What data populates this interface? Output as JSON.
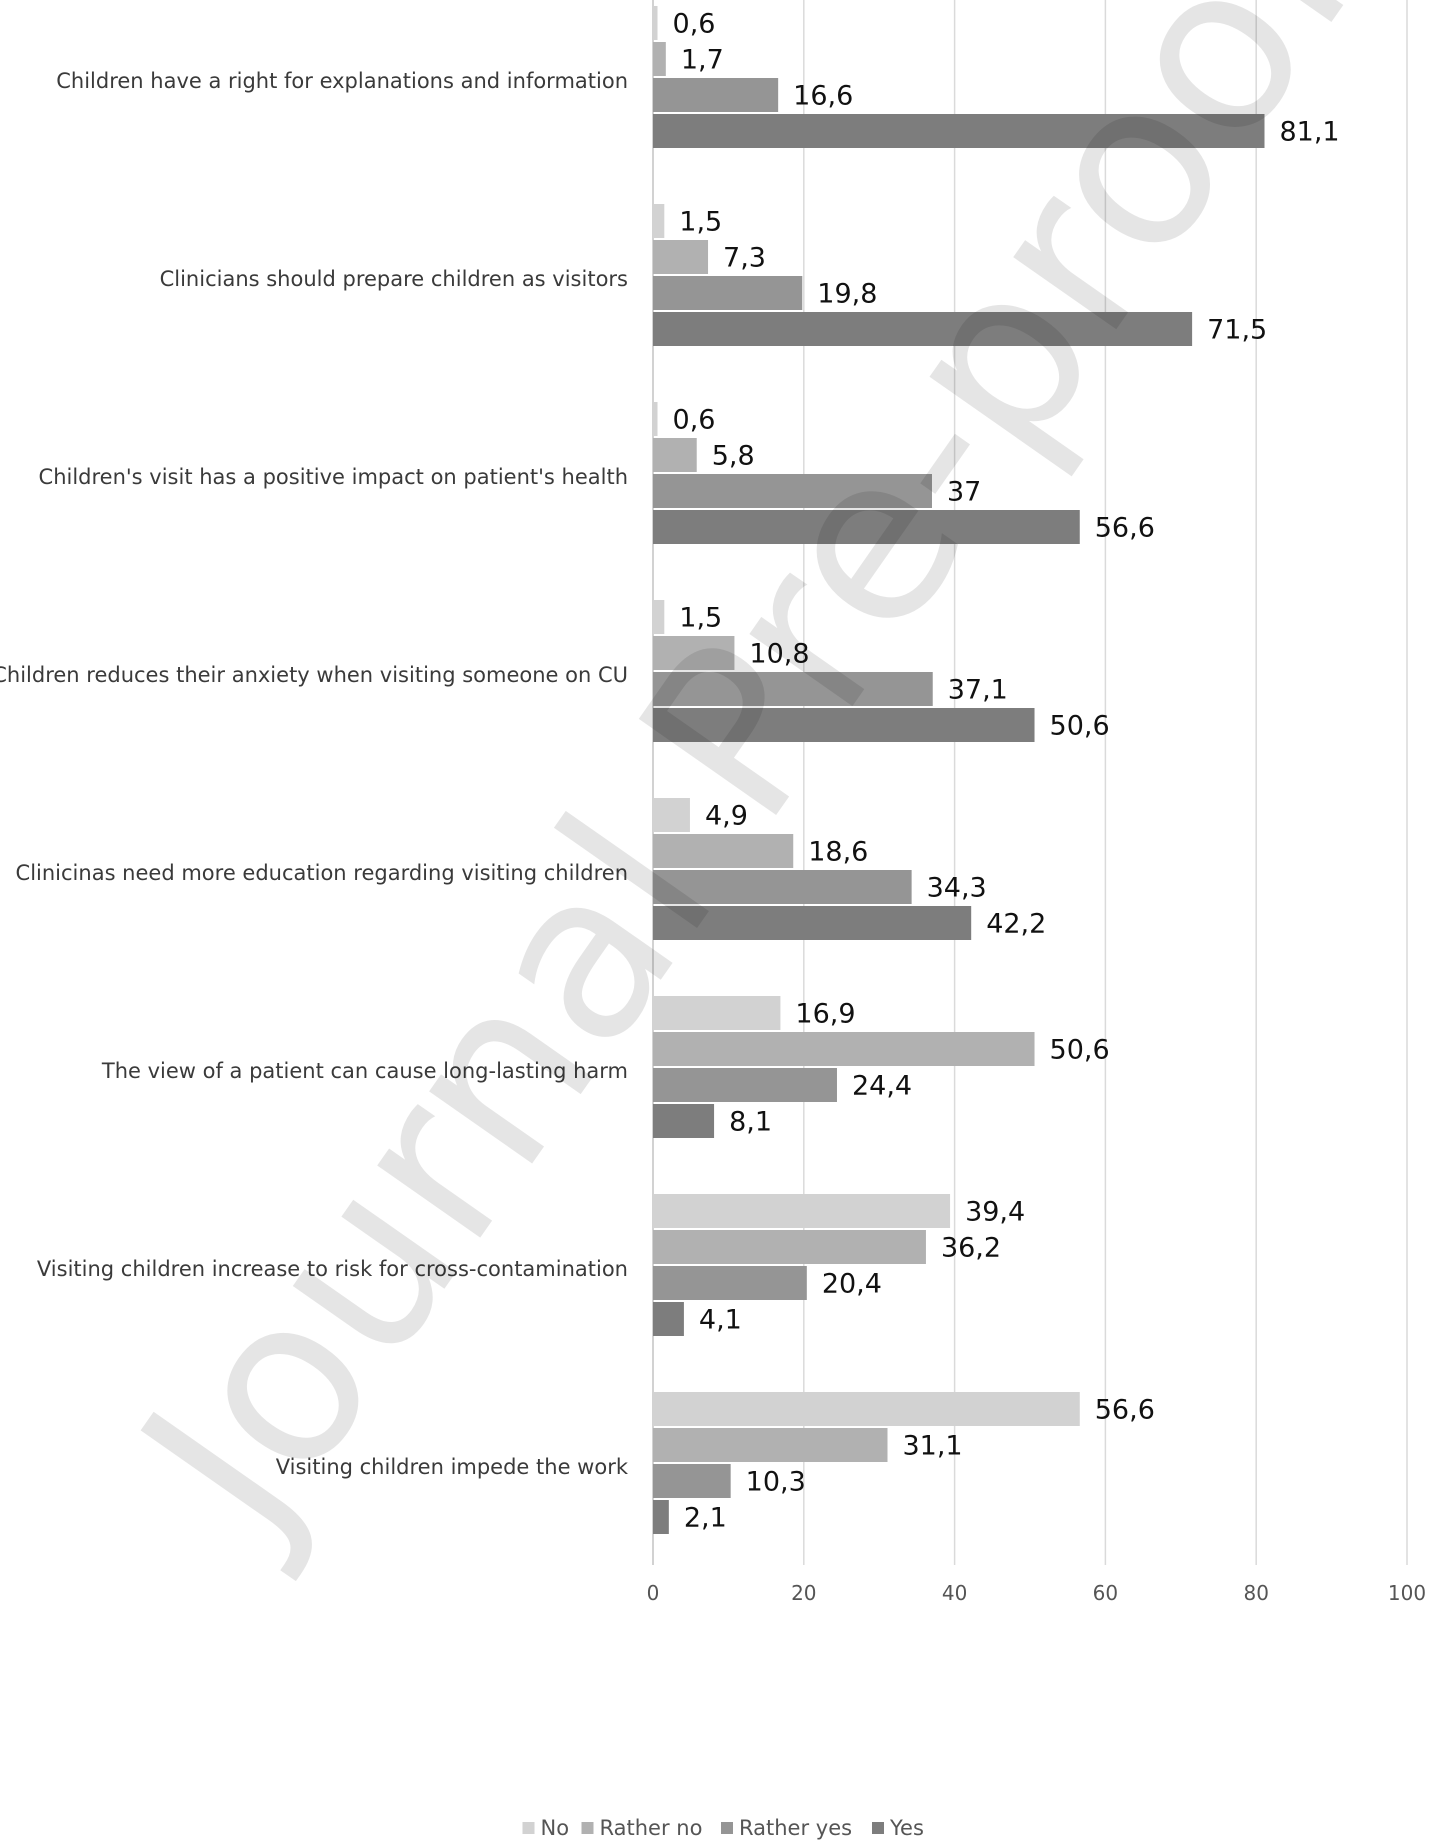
{
  "chart_data": {
    "type": "bar",
    "orientation": "horizontal",
    "categories": [
      "Children have a right for explanations and information",
      "Clinicians should prepare children as visitors",
      "Children's visit has a positive impact on patient's health",
      "Children reduces their anxiety when visiting someone on CU",
      "Clinicinas need more education regarding visiting children",
      "The view of a patient can cause long-lasting harm",
      "Visiting children increase to risk for cross-contamination",
      "Visiting children impede the work"
    ],
    "series": [
      {
        "name": "No",
        "color": "#d2d2d2",
        "values": [
          0.6,
          1.5,
          0.6,
          1.5,
          4.9,
          16.9,
          39.4,
          56.6
        ],
        "labels": [
          "0,6",
          "1,5",
          "0,6",
          "1,5",
          "4,9",
          "16,9",
          "39,4",
          "56,6"
        ]
      },
      {
        "name": "Rather no",
        "color": "#b1b1b1",
        "values": [
          1.7,
          7.3,
          5.8,
          10.8,
          18.6,
          50.6,
          36.2,
          31.1
        ],
        "labels": [
          "1,7",
          "7,3",
          "5,8",
          "10,8",
          "18,6",
          "50,6",
          "36,2",
          "31,1"
        ]
      },
      {
        "name": "Rather yes",
        "color": "#959595",
        "values": [
          16.6,
          19.8,
          37,
          37.1,
          34.3,
          24.4,
          20.4,
          10.3
        ],
        "labels": [
          "16,6",
          "19,8",
          "37",
          "37,1",
          "34,3",
          "24,4",
          "20,4",
          "10,3"
        ]
      },
      {
        "name": "Yes",
        "color": "#7d7d7d",
        "values": [
          81.1,
          71.5,
          56.6,
          50.6,
          42.2,
          8.1,
          4.1,
          2.1
        ],
        "labels": [
          "81,1",
          "71,5",
          "56,6",
          "50,6",
          "42,2",
          "8,1",
          "4,1",
          "2,1"
        ]
      }
    ],
    "xlim": [
      0,
      100
    ],
    "xticks": [
      0,
      20,
      40,
      60,
      80,
      100
    ],
    "xtick_labels": [
      "0",
      "20",
      "40",
      "60",
      "80",
      "100"
    ],
    "grid": "vertical",
    "legend_position": "bottom",
    "title": "",
    "xlabel": "",
    "ylabel": ""
  },
  "watermark": "Journal Pre-proofs"
}
